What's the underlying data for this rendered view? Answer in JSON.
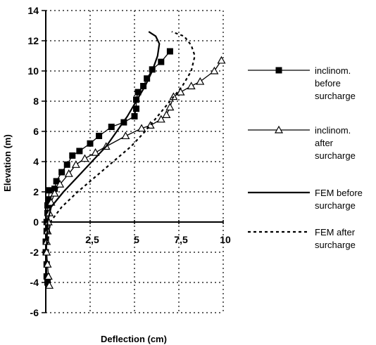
{
  "chart_data": {
    "type": "line",
    "xlabel": "Deflection (cm)",
    "ylabel": "Elevation (m)",
    "xlim": [
      0,
      10
    ],
    "ylim": [
      -6,
      14
    ],
    "x_ticks": [
      2.5,
      5,
      7.5,
      10
    ],
    "x_tick_labels": [
      "2,5",
      "5",
      "7,5",
      "10"
    ],
    "y_ticks": [
      -6,
      -4,
      -2,
      0,
      2,
      4,
      6,
      8,
      10,
      12,
      14
    ],
    "y_tick_labels": [
      "-6",
      "-4",
      "-2",
      "0",
      "2",
      "4",
      "6",
      "8",
      "10",
      "12",
      "14"
    ],
    "grid": "dotted",
    "legend_position": "right",
    "series": [
      {
        "name": "inclinom. before surcharge",
        "style": "solid",
        "marker": "filled-square",
        "color": "#000000",
        "points": [
          [
            0.1,
            -4.0
          ],
          [
            0.05,
            -3.6
          ],
          [
            0.05,
            -2.8
          ],
          [
            0.0,
            -2.0
          ],
          [
            0.0,
            -1.3
          ],
          [
            0.05,
            -0.6
          ],
          [
            0.05,
            0.0
          ],
          [
            0.1,
            0.6
          ],
          [
            0.1,
            1.1
          ],
          [
            0.15,
            1.5
          ],
          [
            0.2,
            2.1
          ],
          [
            0.5,
            2.2
          ],
          [
            0.6,
            2.7
          ],
          [
            0.9,
            3.3
          ],
          [
            1.2,
            3.8
          ],
          [
            1.5,
            4.4
          ],
          [
            1.9,
            4.7
          ],
          [
            2.5,
            5.2
          ],
          [
            3.0,
            5.7
          ],
          [
            3.7,
            6.3
          ],
          [
            4.4,
            6.6
          ],
          [
            5.0,
            7.0
          ],
          [
            5.1,
            7.5
          ],
          [
            5.1,
            8.1
          ],
          [
            5.2,
            8.6
          ],
          [
            5.5,
            9.0
          ],
          [
            5.7,
            9.5
          ],
          [
            6.0,
            10.1
          ],
          [
            6.5,
            10.6
          ],
          [
            7.0,
            11.3
          ]
        ]
      },
      {
        "name": "inclinom. after surcharge",
        "style": "solid",
        "marker": "open-triangle",
        "color": "#000000",
        "points": [
          [
            0.2,
            -4.2
          ],
          [
            0.15,
            -3.6
          ],
          [
            0.1,
            -2.8
          ],
          [
            0.05,
            -2.0
          ],
          [
            0.05,
            -1.3
          ],
          [
            0.1,
            -0.6
          ],
          [
            0.15,
            0.0
          ],
          [
            0.2,
            0.6
          ],
          [
            0.3,
            1.3
          ],
          [
            0.5,
            1.9
          ],
          [
            0.8,
            2.5
          ],
          [
            1.3,
            3.2
          ],
          [
            1.7,
            3.8
          ],
          [
            2.2,
            4.2
          ],
          [
            2.8,
            4.6
          ],
          [
            3.4,
            5.0
          ],
          [
            4.5,
            5.7
          ],
          [
            5.4,
            6.2
          ],
          [
            5.9,
            6.4
          ],
          [
            6.5,
            6.8
          ],
          [
            6.8,
            7.1
          ],
          [
            7.0,
            7.6
          ],
          [
            7.2,
            8.3
          ],
          [
            7.6,
            8.6
          ],
          [
            8.2,
            9.0
          ],
          [
            8.7,
            9.3
          ],
          [
            9.5,
            10.0
          ],
          [
            9.9,
            10.7
          ]
        ]
      },
      {
        "name": "FEM before surcharge",
        "style": "solid",
        "marker": "none",
        "color": "#000000",
        "points": [
          [
            0.05,
            -1.5
          ],
          [
            0.1,
            0.0
          ],
          [
            0.3,
            1.0
          ],
          [
            1.0,
            2.0
          ],
          [
            1.8,
            3.0
          ],
          [
            2.6,
            4.0
          ],
          [
            3.4,
            5.0
          ],
          [
            4.0,
            6.0
          ],
          [
            4.6,
            7.0
          ],
          [
            5.1,
            8.0
          ],
          [
            5.6,
            9.0
          ],
          [
            6.0,
            10.0
          ],
          [
            6.3,
            11.0
          ],
          [
            6.4,
            11.8
          ],
          [
            6.2,
            12.3
          ],
          [
            5.8,
            12.6
          ]
        ]
      },
      {
        "name": "FEM after surcharge",
        "style": "dashed",
        "marker": "none",
        "color": "#000000",
        "points": [
          [
            0.1,
            -1.5
          ],
          [
            0.25,
            0.0
          ],
          [
            0.9,
            1.0
          ],
          [
            1.8,
            2.0
          ],
          [
            2.8,
            3.0
          ],
          [
            3.8,
            4.0
          ],
          [
            4.8,
            5.0
          ],
          [
            5.6,
            6.0
          ],
          [
            6.3,
            7.0
          ],
          [
            7.0,
            8.0
          ],
          [
            7.7,
            9.0
          ],
          [
            8.2,
            10.0
          ],
          [
            8.4,
            11.0
          ],
          [
            8.2,
            11.7
          ],
          [
            7.8,
            12.3
          ],
          [
            7.1,
            12.6
          ]
        ]
      }
    ]
  }
}
